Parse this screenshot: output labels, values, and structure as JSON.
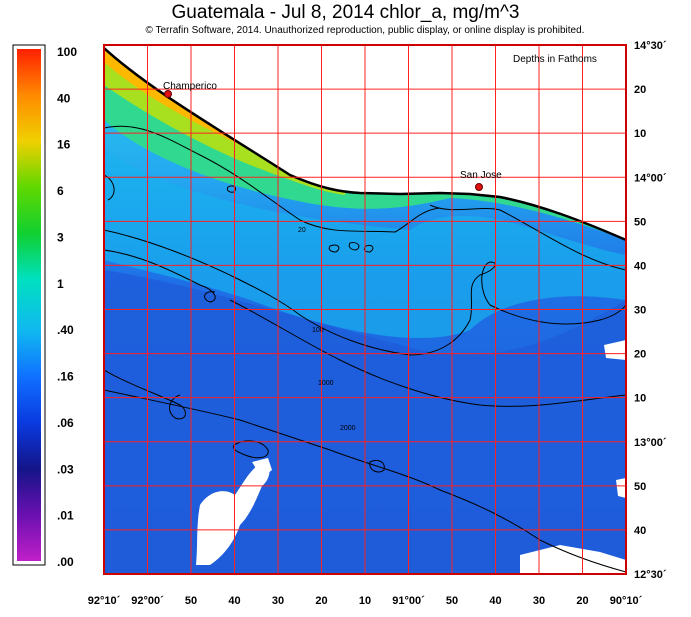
{
  "header": {
    "title": "Guatemala - Jul 8, 2014  chlor_a, mg/m^3",
    "copyright": "© Terrafin Software,  2014.  Unauthorized reproduction, public display, or online display is prohibited."
  },
  "map": {
    "depth_note": "Depths in Fathoms",
    "places": [
      {
        "name": "Champerico"
      },
      {
        "name": "San Jose"
      }
    ],
    "contours": [
      "20",
      "100",
      "1000",
      "2000"
    ],
    "longitude_labels": [
      "92°10´",
      "92°00´",
      "50",
      "40",
      "30",
      "20",
      "10",
      "91°00´",
      "50",
      "40",
      "30",
      "20",
      "90°10´"
    ],
    "latitude_labels": [
      "14°30´",
      "20",
      "10",
      "14°00´",
      "50",
      "40",
      "30",
      "20",
      "10",
      "13°00´",
      "50",
      "40",
      "12°30´"
    ]
  },
  "colorbar": {
    "labels": [
      "100",
      "40",
      "16",
      "6",
      "3",
      "1",
      ".40",
      ".16",
      ".06",
      ".03",
      ".01",
      ".00"
    ],
    "colors": [
      "#ff2a00",
      "#ff9900",
      "#c8d400",
      "#38d400",
      "#00e8a8",
      "#00cfe0",
      "#1a8cff",
      "#1048e8",
      "#1a1aa8",
      "#6a1ab0",
      "#b01ab8",
      "#ffffff"
    ]
  },
  "colors": {
    "grid": "#ff1a1a",
    "frame": "#cc0000",
    "land": "#ffffff",
    "deep": "#1f5fe0",
    "shelf": "#28d0e8",
    "coast_high": "#ffb000"
  }
}
